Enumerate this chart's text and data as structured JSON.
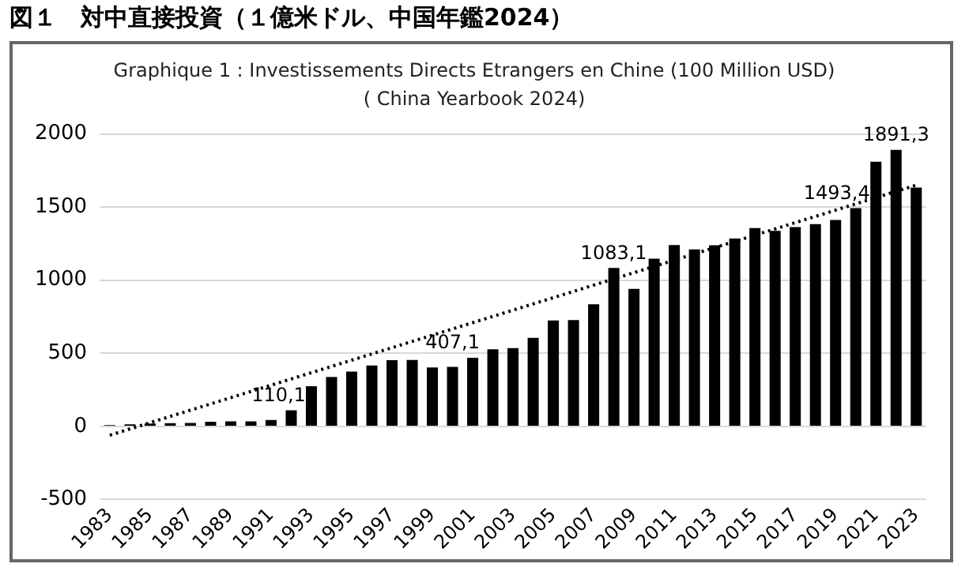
{
  "chart_data": {
    "type": "bar",
    "title": "Graphique 1 : Investissements Directs Etrangers en Chine (100 Million USD)",
    "subtitle": "( China Yearbook 2024)",
    "annotations": [
      "図１　対中直接投資（１億米ドル、中国年鑑2024）"
    ],
    "categories": [
      "1983",
      null,
      "1985",
      null,
      "1987",
      null,
      "1989",
      null,
      "1991",
      null,
      "1993",
      null,
      "1995",
      null,
      "1997",
      null,
      "1999",
      null,
      "2001",
      null,
      "2003",
      null,
      "2005",
      null,
      "2007",
      null,
      "2009",
      null,
      "2011",
      null,
      "2013",
      null,
      "2015",
      null,
      "2017",
      null,
      "2019",
      null,
      "2021",
      null,
      "2023"
    ],
    "series": [
      {
        "color": "#000000",
        "values": [
          9,
          14,
          20,
          22,
          23,
          32,
          34,
          35,
          44,
          110.1,
          275,
          338,
          375,
          417,
          453,
          455,
          403,
          407.1,
          469,
          527,
          535,
          606,
          724,
          727,
          835,
          1083.1,
          941,
          1147,
          1240,
          1211,
          1239,
          1285,
          1356,
          1337,
          1363,
          1383,
          1412,
          1493.4,
          1810,
          1891.3,
          1633
        ],
        "value_labels": [
          null,
          null,
          null,
          null,
          null,
          null,
          null,
          null,
          null,
          "110,1",
          null,
          null,
          null,
          null,
          null,
          null,
          null,
          "407,1",
          null,
          null,
          null,
          null,
          null,
          null,
          null,
          "1083,1",
          null,
          null,
          null,
          null,
          null,
          null,
          null,
          null,
          null,
          null,
          null,
          "1493,4",
          null,
          "1891,3",
          null
        ]
      },
      {
        "type": "line",
        "color": "#000000",
        "line_style": "dotted",
        "marker": "none",
        "values": [
          -60,
          null,
          null,
          null,
          null,
          null,
          null,
          null,
          null,
          null,
          null,
          null,
          null,
          null,
          null,
          null,
          null,
          null,
          null,
          null,
          null,
          null,
          null,
          null,
          null,
          null,
          null,
          null,
          null,
          null,
          null,
          null,
          null,
          null,
          null,
          null,
          null,
          null,
          null,
          null,
          1650
        ]
      }
    ],
    "ylim": [
      -500,
      2000
    ],
    "yticks": [
      -500,
      0,
      500,
      1000,
      1500,
      2000
    ],
    "grid": "y",
    "legend": false
  }
}
